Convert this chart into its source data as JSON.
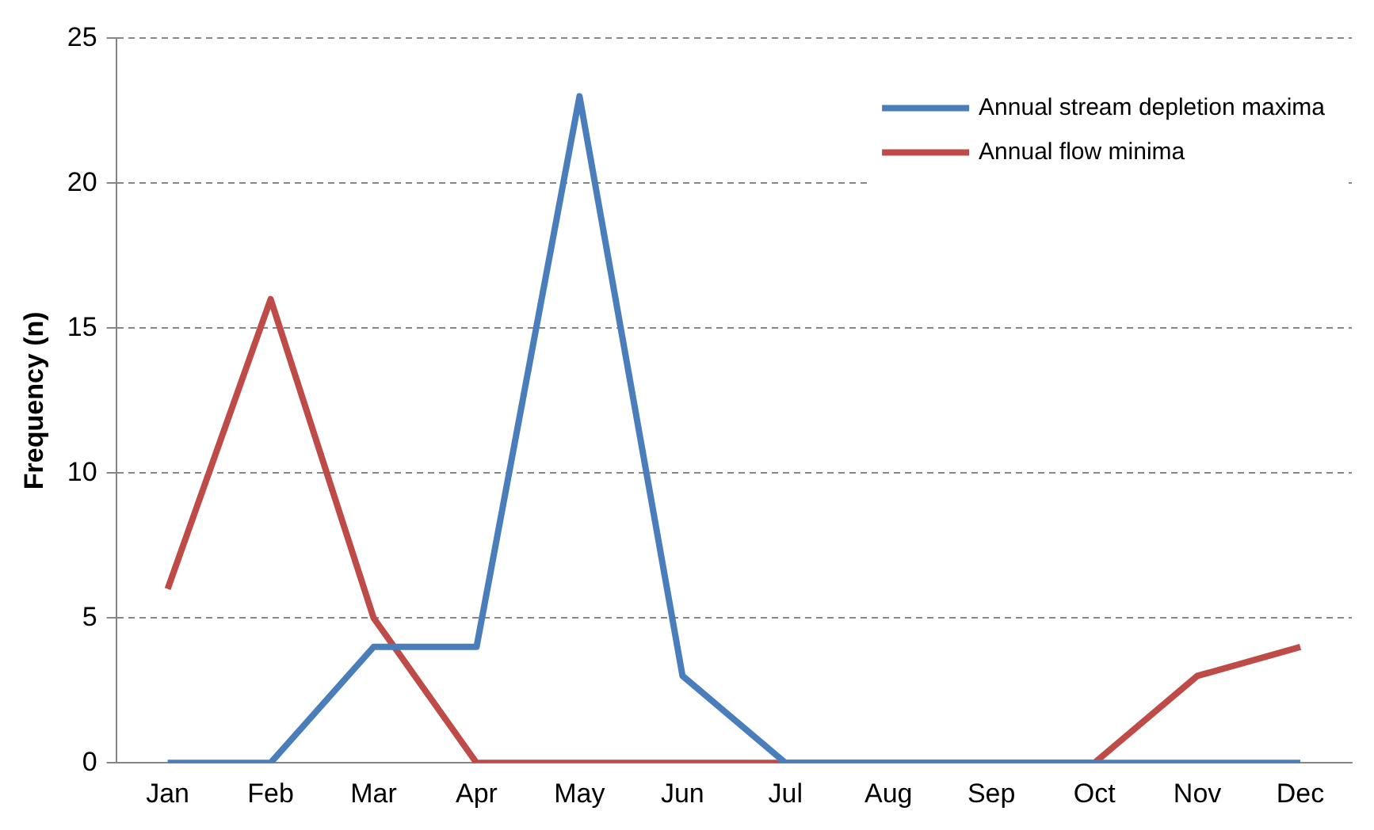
{
  "chart_data": {
    "type": "line",
    "ylabel": "Frequency (n)",
    "categories": [
      "Jan",
      "Feb",
      "Mar",
      "Apr",
      "May",
      "Jun",
      "Jul",
      "Aug",
      "Sep",
      "Oct",
      "Nov",
      "Dec"
    ],
    "series": [
      {
        "name": "Annual stream depletion maxima",
        "color": "#4a7ebb",
        "values": [
          0,
          0,
          4,
          4,
          23,
          3,
          0,
          0,
          0,
          0,
          0,
          0
        ]
      },
      {
        "name": "Annual flow minima",
        "color": "#be4b48",
        "values": [
          6,
          16,
          5,
          0,
          0,
          0,
          0,
          0,
          0,
          0,
          3,
          4
        ]
      }
    ],
    "ylim": [
      0,
      25
    ],
    "yticks": [
      0,
      5,
      10,
      15,
      20,
      25
    ],
    "grid": "y",
    "legend": "top right",
    "marker": "none",
    "line_style": "solid"
  }
}
